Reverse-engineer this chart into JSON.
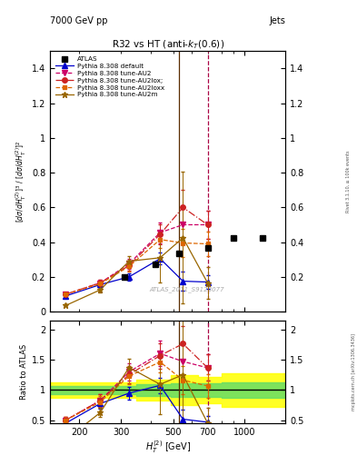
{
  "title": "R32 vs HT (anti-$k_T$(0.6))",
  "header_left": "7000 GeV pp",
  "header_right": "Jets",
  "watermark": "ATLAS_2011_S9128077",
  "xlabel": "$H_T^{(2)}$ [GeV]",
  "ylabel_main": "$[d\\sigma/dH_T^{(2)}]^3$ / $[d\\sigma/dH_T^{(2)}]^2$",
  "ylabel_ratio": "Ratio to ATLAS",
  "ylim_main": [
    0.0,
    1.5
  ],
  "ylim_ratio": [
    0.45,
    2.15
  ],
  "xlim": [
    150,
    1500
  ],
  "vline_brown": 530,
  "vline_pink": 700,
  "atlas_data": {
    "x": [
      310,
      420,
      530,
      700,
      900,
      1200
    ],
    "y": [
      0.2,
      0.27,
      0.335,
      0.365,
      0.425,
      0.425
    ],
    "color": "black",
    "marker": "s",
    "markersize": 5
  },
  "pythia_default": {
    "x": [
      175,
      245,
      325,
      440,
      550,
      700
    ],
    "y": [
      0.09,
      0.155,
      0.2,
      0.305,
      0.175,
      0.17
    ],
    "yerr": [
      0.012,
      0.018,
      0.022,
      0.035,
      0.055,
      0.04
    ],
    "color": "#0000cc",
    "label": "Pythia 8.308 default",
    "marker": "^",
    "markersize": 4,
    "linestyle": "-"
  },
  "pythia_AU2": {
    "x": [
      175,
      245,
      325,
      440,
      550,
      700
    ],
    "y": [
      0.1,
      0.165,
      0.275,
      0.455,
      0.5,
      0.5
    ],
    "yerr": [
      0.012,
      0.02,
      0.03,
      0.06,
      0.1,
      0.08
    ],
    "color": "#cc0066",
    "label": "Pythia 8.308 tune-AU2",
    "marker": "v",
    "markersize": 4,
    "linestyle": "--"
  },
  "pythia_AU2lox": {
    "x": [
      175,
      245,
      325,
      440,
      550,
      700
    ],
    "y": [
      0.1,
      0.165,
      0.265,
      0.445,
      0.6,
      0.5
    ],
    "yerr": [
      0.012,
      0.02,
      0.03,
      0.06,
      0.1,
      0.08
    ],
    "color": "#cc2222",
    "label": "Pythia 8.308 tune-AU2lox;",
    "marker": "o",
    "markersize": 4,
    "linestyle": "-."
  },
  "pythia_AU2loxx": {
    "x": [
      175,
      245,
      325,
      440,
      550,
      700
    ],
    "y": [
      0.1,
      0.16,
      0.26,
      0.415,
      0.395,
      0.39
    ],
    "yerr": [
      0.012,
      0.02,
      0.03,
      0.05,
      0.08,
      0.07
    ],
    "color": "#dd6600",
    "label": "Pythia 8.308 tune-AU2loxx",
    "marker": "s",
    "markersize": 3,
    "linestyle": "--"
  },
  "pythia_AU2m": {
    "x": [
      175,
      245,
      325,
      440,
      550,
      700
    ],
    "y": [
      0.035,
      0.125,
      0.29,
      0.31,
      0.425,
      0.165
    ],
    "yerr": [
      0.006,
      0.015,
      0.03,
      0.14,
      0.38,
      0.09
    ],
    "color": "#996600",
    "label": "Pythia 8.308 tune-AU2m",
    "marker": "*",
    "markersize": 5,
    "linestyle": "-"
  },
  "right_text_top": "Rivet 3.1.10, ≥ 100k events",
  "right_text_bot": "mcplots.cern.ch [arXiv:1306.3436]"
}
